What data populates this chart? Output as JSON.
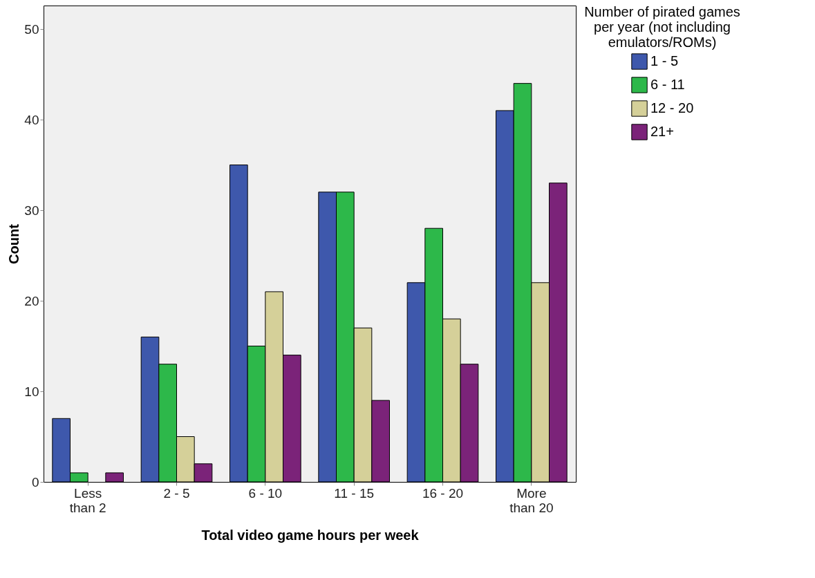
{
  "chart_data": {
    "type": "bar",
    "xlabel": "Total video game hours per week",
    "ylabel": "Count",
    "legend_title": "Number of pirated games per year (not including emulators/ROMs)",
    "categories": [
      "Less than 2",
      "2 - 5",
      "6 - 10",
      "11 - 15",
      "16 - 20",
      "More than 20"
    ],
    "series": [
      {
        "name": "1 - 5",
        "color": "#3e58ac",
        "values": [
          7,
          16,
          35,
          32,
          22,
          41
        ]
      },
      {
        "name": "6 - 11",
        "color": "#2db84a",
        "values": [
          1,
          13,
          15,
          32,
          28,
          44
        ]
      },
      {
        "name": "12 - 20",
        "color": "#d5d099",
        "values": [
          0,
          5,
          21,
          17,
          18,
          22
        ]
      },
      {
        "name": "21+",
        "color": "#7b2379",
        "values": [
          1,
          2,
          14,
          9,
          13,
          33
        ]
      }
    ],
    "ylim": [
      0,
      52.6
    ],
    "yticks": [
      0,
      10,
      20,
      30,
      40,
      50
    ],
    "grid": false,
    "legend": "top right"
  }
}
